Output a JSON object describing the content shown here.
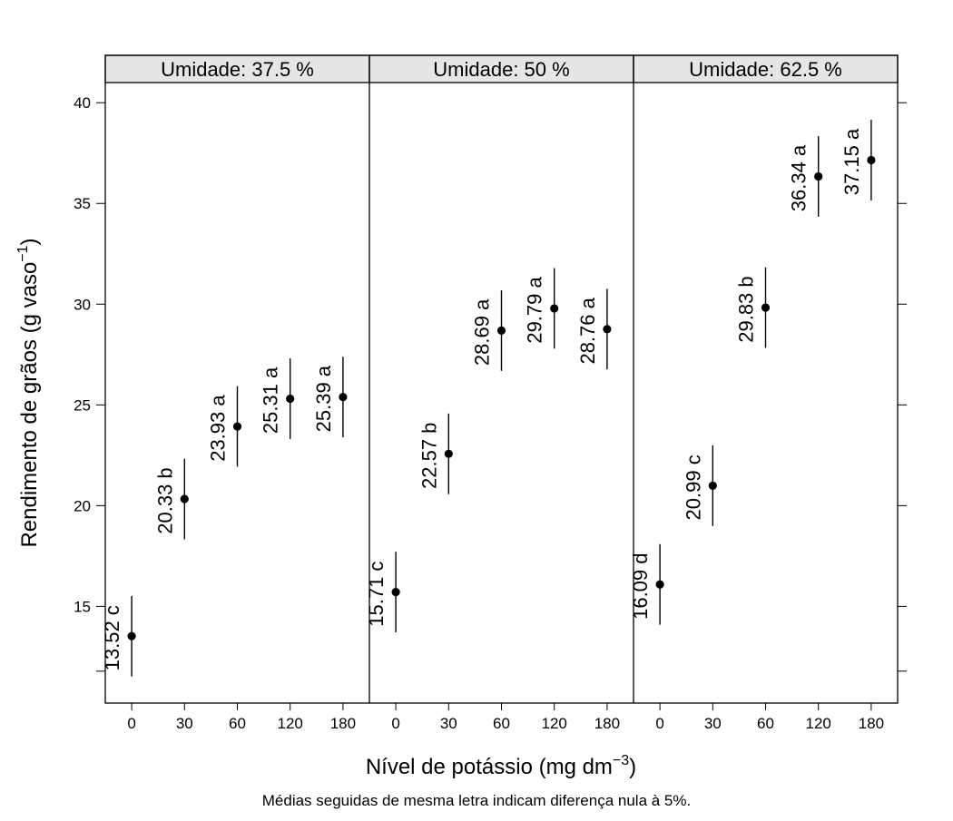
{
  "chart_data": {
    "type": "scatter",
    "subtype": "dot-interval-panels",
    "xlabel_main": "Nível de potássio (mg dm",
    "xlabel_sup": "−3",
    "xlabel_close": ")",
    "ylabel_main": "Rendimento de grãos (g vaso",
    "ylabel_sup": "−1",
    "ylabel_close": ")",
    "footnote": "Médias seguidas de mesma letra indicam diferença nula à 5%.",
    "categories": [
      "0",
      "30",
      "60",
      "120",
      "180"
    ],
    "yticks": [
      15,
      20,
      25,
      30,
      35,
      40
    ],
    "ylim": [
      10.2,
      41.0
    ],
    "grid": false,
    "interval_half_width": 2.0,
    "panels": [
      {
        "strip": "Umidade: 37.5 %",
        "values": [
          13.52,
          20.33,
          23.93,
          25.31,
          25.39
        ],
        "labels": [
          "13.52 c",
          "20.33 b",
          "23.93 a",
          "25.31 a",
          "25.39 a"
        ]
      },
      {
        "strip": "Umidade: 50 %",
        "values": [
          15.71,
          22.57,
          28.69,
          29.79,
          28.76
        ],
        "labels": [
          "15.71 c",
          "22.57 b",
          "28.69 a",
          "29.79 a",
          "28.76 a"
        ]
      },
      {
        "strip": "Umidade: 62.5 %",
        "values": [
          16.09,
          20.99,
          29.83,
          36.34,
          37.15
        ],
        "labels": [
          "16.09 d",
          "20.99 c",
          "29.83 b",
          "36.34 a",
          "37.15 a"
        ]
      }
    ],
    "colors": {
      "strip_bg": "#e6e6e6",
      "ink": "#000000"
    }
  }
}
